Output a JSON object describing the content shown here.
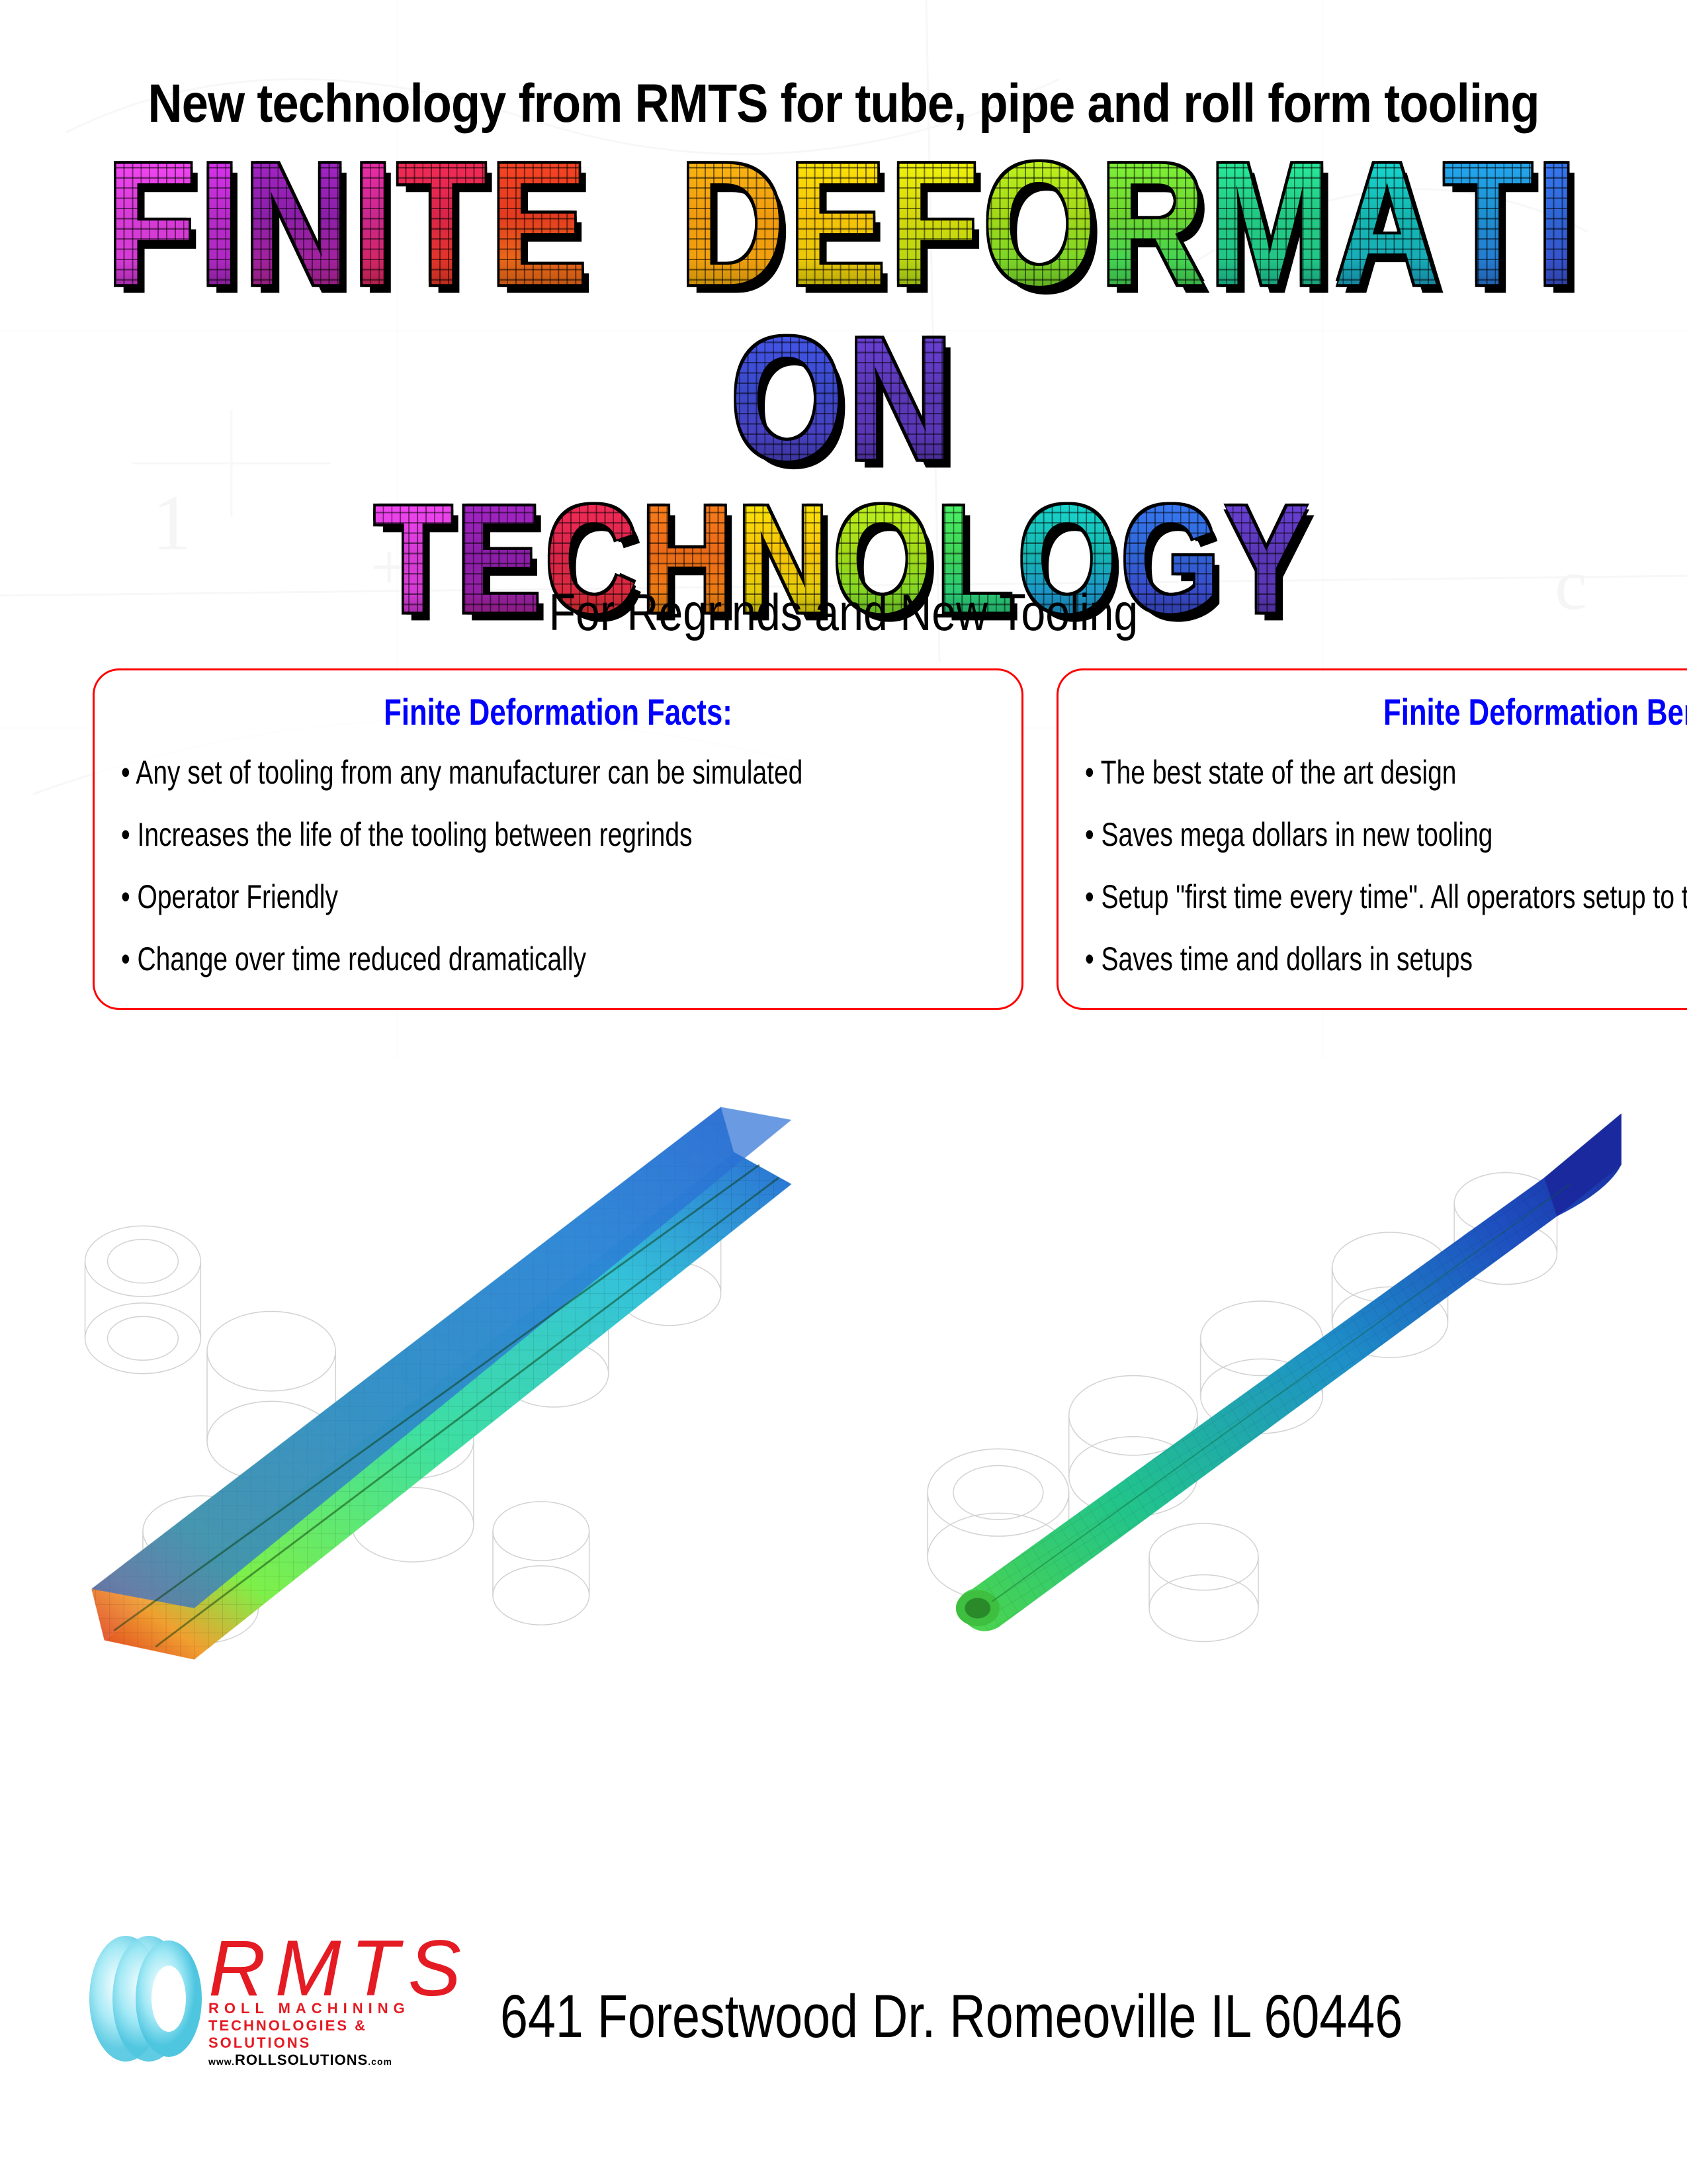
{
  "header": {
    "tagline": "New technology from RMTS for tube, pipe and roll form tooling",
    "hero_line1": "FINITE DEFORMATION",
    "hero_line2": "TECHNOLOGY",
    "subtitle": "For Regrinds and New Tooling",
    "rainbow_colors": [
      "#d63bd6",
      "#b82bca",
      "#8b1fa8",
      "#c9278f",
      "#d9254a",
      "#e43a1f",
      "#ea6a17",
      "#f09b0f",
      "#f5c207",
      "#d4d80a",
      "#a2d818",
      "#6dd62e",
      "#3fd556",
      "#22c883",
      "#14b7b0",
      "#1e8fcf",
      "#2f66d6",
      "#3a49c8",
      "#4a3fbf",
      "#5a37b6"
    ]
  },
  "facts": {
    "title": "Finite Deformation Facts:",
    "items": [
      "Any set of tooling from any manufacturer can be simulated",
      "Increases the life of the tooling between regrinds",
      "Operator Friendly",
      "Change over time reduced dramatically"
    ]
  },
  "benefits": {
    "title": "Finite Deformation Benefits:",
    "items": [
      "The best state of the art design",
      "Saves mega dollars in new tooling",
      "Setup \"first time every time\". All operators setup to the same chart",
      "Saves time and dollars in setups"
    ]
  },
  "simulations": {
    "left": {
      "type": "fea-render",
      "shape": "rectangular-tube",
      "gradient_colors": [
        "#2b6fd4",
        "#35c3d9",
        "#3fe0a0",
        "#7ef04a",
        "#e8e23a",
        "#f0a030",
        "#e04020"
      ],
      "wireframe_color": "#c8c8c8",
      "background": "#ffffff"
    },
    "right": {
      "type": "fea-render",
      "shape": "round-tube",
      "gradient_colors": [
        "#1a2a9e",
        "#1e4fc0",
        "#1f90c8",
        "#22c48c",
        "#4ed64a",
        "#a8e03a"
      ],
      "wireframe_color": "#c8c8c8",
      "background": "#ffffff"
    }
  },
  "footer": {
    "logo": {
      "main": "RMTS",
      "sub1": "ROLL MACHINING",
      "sub2": "TECHNOLOGIES & SOLUTIONS",
      "url_prefix": "www.",
      "url_main": "ROLLSOLUTIONS",
      "url_suffix": ".com",
      "brand_color": "#e41b23",
      "ring_color": "#6fd8f0"
    },
    "address": "641 Forestwood Dr. Romeoville IL 60446"
  }
}
